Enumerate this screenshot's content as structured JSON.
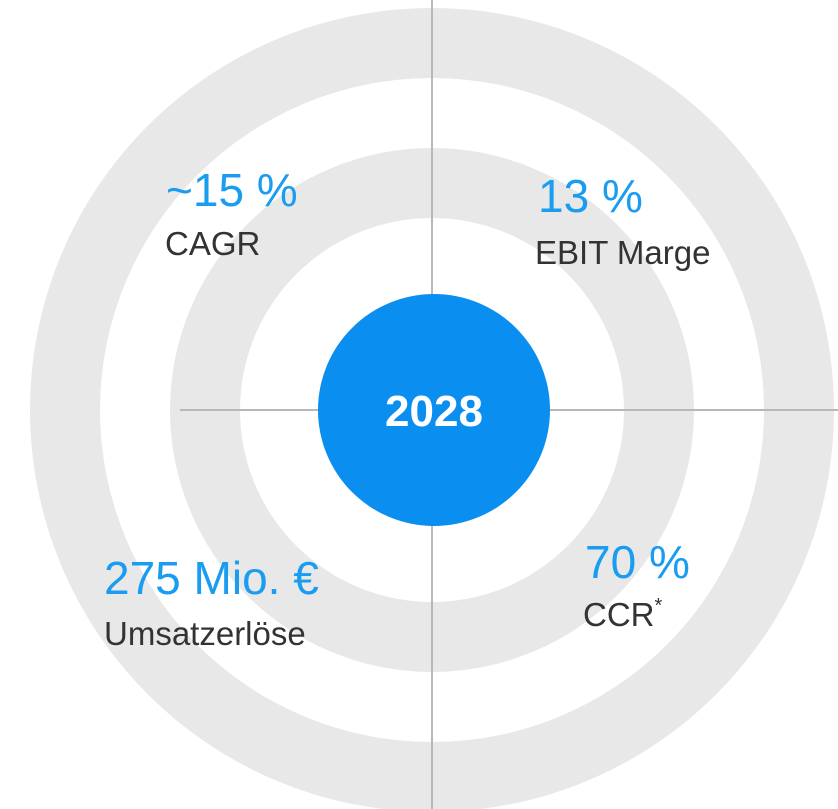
{
  "center": {
    "label": "2028"
  },
  "quadrants": [
    {
      "value": "~15 %",
      "label": "CAGR"
    },
    {
      "value": "13 %",
      "label": "EBIT Marge"
    },
    {
      "value": "275 Mio. €",
      "label": "Umsatzerlöse"
    },
    {
      "value": "70 %",
      "label": "CCR",
      "footnote_mark": "*"
    }
  ]
}
